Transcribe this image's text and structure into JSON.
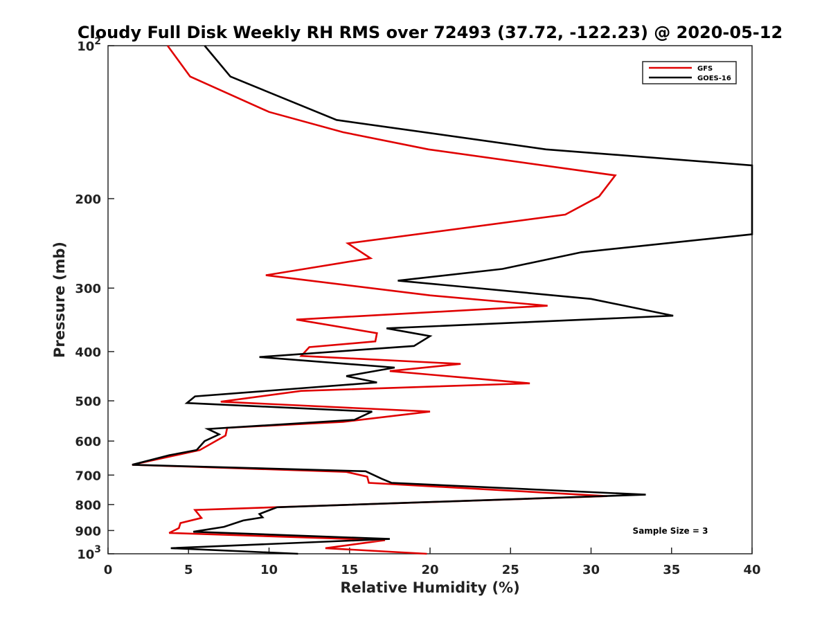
{
  "chart_data": {
    "type": "line",
    "title": "Cloudy Full Disk Weekly RH RMS over 72493 (37.72, -122.23) @ 2020-05-12",
    "xlabel": "Relative Humidity (%)",
    "ylabel": "Pressure (mb)",
    "xlim": [
      0,
      40
    ],
    "ylim": [
      100,
      1000
    ],
    "yscale": "log",
    "y_reversed": true,
    "grid": false,
    "legend_position": "top-right",
    "x_ticks": [
      {
        "value": 0,
        "label": "0"
      },
      {
        "value": 5,
        "label": "5"
      },
      {
        "value": 10,
        "label": "10"
      },
      {
        "value": 15,
        "label": "15"
      },
      {
        "value": 20,
        "label": "20"
      },
      {
        "value": 25,
        "label": "25"
      },
      {
        "value": 30,
        "label": "30"
      },
      {
        "value": 35,
        "label": "35"
      },
      {
        "value": 40,
        "label": "40"
      }
    ],
    "y_ticks": [
      {
        "value": 100,
        "base": "10",
        "exp": "2"
      },
      {
        "value": 200,
        "label": "200"
      },
      {
        "value": 300,
        "label": "300"
      },
      {
        "value": 400,
        "label": "400"
      },
      {
        "value": 500,
        "label": "500"
      },
      {
        "value": 600,
        "label": "600"
      },
      {
        "value": 700,
        "label": "700"
      },
      {
        "value": 800,
        "label": "800"
      },
      {
        "value": 900,
        "label": "900"
      },
      {
        "value": 1000,
        "base": "10",
        "exp": "3"
      }
    ],
    "annotation": "Sample Size = 3",
    "series": [
      {
        "name": "GFS",
        "color": "#e00000",
        "points": [
          [
            3.7,
            100
          ],
          [
            5.1,
            115
          ],
          [
            10.0,
            135
          ],
          [
            14.6,
            148
          ],
          [
            19.9,
            160
          ],
          [
            31.5,
            180
          ],
          [
            30.5,
            198
          ],
          [
            28.4,
            215
          ],
          [
            14.9,
            245
          ],
          [
            16.3,
            262
          ],
          [
            9.8,
            283
          ],
          [
            20.0,
            310
          ],
          [
            27.3,
            325
          ],
          [
            11.7,
            346
          ],
          [
            16.7,
            368
          ],
          [
            16.6,
            382
          ],
          [
            12.5,
            392
          ],
          [
            12.0,
            408
          ],
          [
            21.9,
            423
          ],
          [
            17.5,
            437
          ],
          [
            26.2,
            462
          ],
          [
            12.0,
            478
          ],
          [
            7.0,
            502
          ],
          [
            20.0,
            525
          ],
          [
            14.6,
            550
          ],
          [
            7.4,
            565
          ],
          [
            7.3,
            585
          ],
          [
            5.7,
            625
          ],
          [
            1.5,
            668
          ],
          [
            14.8,
            690
          ],
          [
            16.1,
            705
          ],
          [
            16.2,
            725
          ],
          [
            31.0,
            770
          ],
          [
            5.4,
            820
          ],
          [
            5.8,
            850
          ],
          [
            4.5,
            870
          ],
          [
            4.4,
            890
          ],
          [
            3.8,
            910
          ],
          [
            17.2,
            940
          ],
          [
            13.5,
            975
          ],
          [
            19.8,
            1000
          ]
        ]
      },
      {
        "name": "GOES-16",
        "color": "#000000",
        "points": [
          [
            6.0,
            100
          ],
          [
            7.6,
            115
          ],
          [
            14.2,
            140
          ],
          [
            27.2,
            160
          ],
          [
            40.0,
            172
          ],
          [
            40.0,
            235
          ],
          [
            29.4,
            255
          ],
          [
            24.5,
            275
          ],
          [
            18.0,
            290
          ],
          [
            30.0,
            315
          ],
          [
            35.1,
            340
          ],
          [
            17.3,
            360
          ],
          [
            20.0,
            373
          ],
          [
            19.0,
            390
          ],
          [
            9.4,
            410
          ],
          [
            17.8,
            430
          ],
          [
            14.8,
            447
          ],
          [
            16.7,
            460
          ],
          [
            5.4,
            490
          ],
          [
            4.9,
            505
          ],
          [
            16.4,
            525
          ],
          [
            15.3,
            545
          ],
          [
            6.2,
            568
          ],
          [
            6.9,
            582
          ],
          [
            6.0,
            600
          ],
          [
            5.5,
            625
          ],
          [
            3.8,
            640
          ],
          [
            1.5,
            668
          ],
          [
            16.0,
            688
          ],
          [
            17.0,
            712
          ],
          [
            17.6,
            725
          ],
          [
            33.4,
            765
          ],
          [
            10.5,
            810
          ],
          [
            9.4,
            835
          ],
          [
            9.6,
            848
          ],
          [
            8.4,
            860
          ],
          [
            7.2,
            885
          ],
          [
            5.3,
            905
          ],
          [
            17.5,
            935
          ],
          [
            3.9,
            975
          ],
          [
            11.8,
            1000
          ]
        ]
      }
    ]
  }
}
